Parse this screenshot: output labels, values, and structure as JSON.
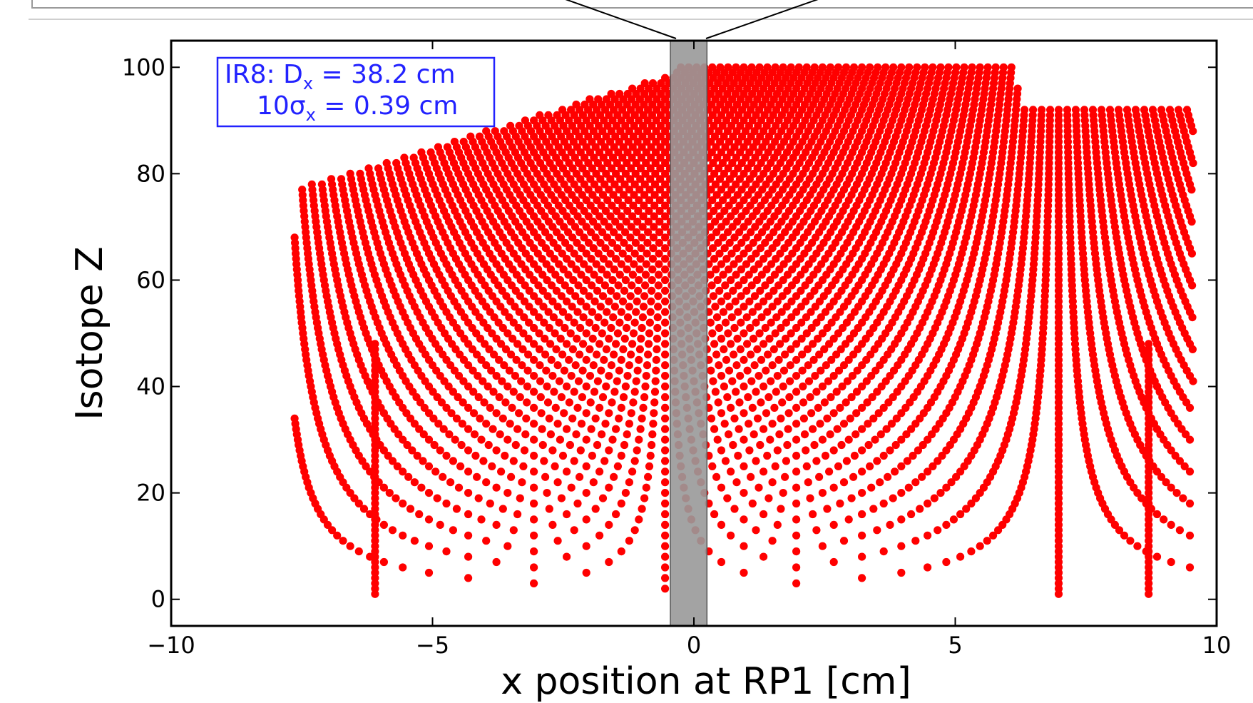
{
  "chart_data": {
    "type": "scatter",
    "xlabel": "x position at RP1 [cm]",
    "ylabel": "Isotope Z",
    "xlim": [
      -10,
      10
    ],
    "ylim": [
      -5,
      105
    ],
    "x_ticks": [
      -10,
      -5,
      0,
      5,
      10
    ],
    "y_ticks": [
      0,
      20,
      40,
      60,
      80,
      100
    ],
    "grid": false,
    "point_color": "#ff0000",
    "annotation": {
      "line1": {
        "prefix": "IR8: D",
        "sub": "x",
        "suffix": " = 38.2 cm"
      },
      "line2": {
        "prefix": "10σ",
        "sub": "x",
        "suffix": " = 0.39 cm"
      },
      "color": "#2222ff",
      "position": "top-left"
    },
    "shaded_band": {
      "x_range": [
        -0.45,
        0.25
      ],
      "color": "#999999"
    },
    "series": [
      {
        "points_description_omitted": true,
        "z_range": [
          1,
          100
        ],
        "x_range": [
          -10,
          10
        ],
        "vertical_lines_at_x": [
          -6.1,
          8.7
        ]
      }
    ]
  },
  "colors": {
    "axis": "#000000",
    "frame": "#9a9a9a"
  }
}
